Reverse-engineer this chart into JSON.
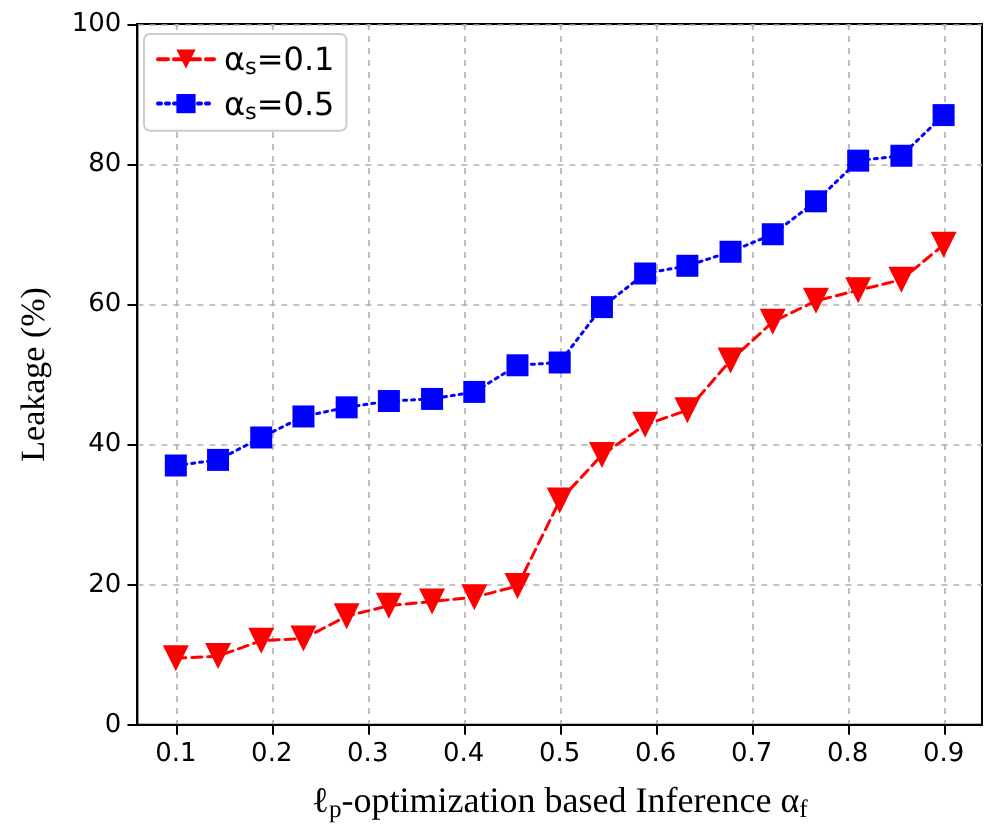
{
  "chart_data": {
    "type": "line",
    "xlabel": "ℓ$_{p}$-optimization based Inference α$_{f}$",
    "ylabel": "Leakage (%)",
    "x": [
      0.1,
      0.144,
      0.189,
      0.233,
      0.278,
      0.322,
      0.367,
      0.411,
      0.456,
      0.5,
      0.544,
      0.589,
      0.633,
      0.678,
      0.722,
      0.767,
      0.811,
      0.856,
      0.9
    ],
    "series": [
      {
        "name": "α$_{s}$=0.1",
        "color": "#ff0000",
        "marker": "triangle",
        "line_style": "dashed",
        "values": [
          9.5,
          9.8,
          12,
          12.3,
          15.5,
          17,
          17.6,
          18.2,
          19.8,
          32,
          38.5,
          42.8,
          44.9,
          52,
          57.5,
          60.5,
          62,
          63.5,
          68.5
        ]
      },
      {
        "name": "α$_{s}$=0.5",
        "color": "#0000ff",
        "marker": "square",
        "line_style": "dotted",
        "values": [
          37,
          37.8,
          41,
          44,
          45.3,
          46.2,
          46.5,
          47.5,
          51.3,
          51.7,
          59.6,
          64.4,
          65.5,
          67.5,
          70,
          74.7,
          80.5,
          81.2,
          87
        ]
      }
    ],
    "xlim": [
      0.06,
      0.94
    ],
    "xticks": [
      0.1,
      0.2,
      0.3,
      0.4,
      0.5,
      0.6,
      0.7,
      0.8,
      0.9
    ],
    "ylim": [
      0,
      100
    ],
    "yticks": [
      0,
      20,
      40,
      60,
      80,
      100
    ],
    "grid": true,
    "legend": "top left"
  }
}
